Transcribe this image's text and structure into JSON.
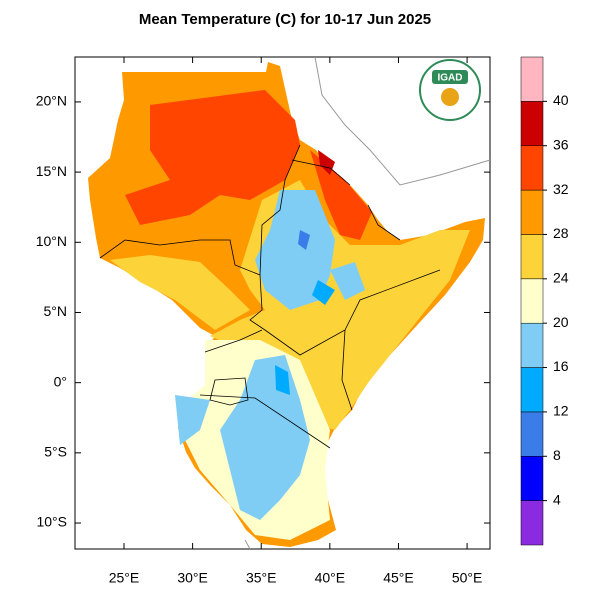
{
  "title": "Mean Temperature (C) for 10-17 Jun 2025",
  "logo": "IGAD",
  "xlim": [
    21.43,
    51.67
  ],
  "ylim": [
    -11.85,
    23.2
  ],
  "xticks": [
    {
      "value": 25,
      "label": "25°E"
    },
    {
      "value": 30,
      "label": "30°E"
    },
    {
      "value": 35,
      "label": "35°E"
    },
    {
      "value": 40,
      "label": "40°E"
    },
    {
      "value": 45,
      "label": "45°E"
    },
    {
      "value": 50,
      "label": "50°E"
    }
  ],
  "yticks": [
    {
      "value": 20,
      "label": "20°N"
    },
    {
      "value": 15,
      "label": "15°N"
    },
    {
      "value": 10,
      "label": "10°N"
    },
    {
      "value": 5,
      "label": "5°N"
    },
    {
      "value": 0,
      "label": "0°"
    },
    {
      "value": -5,
      "label": "5°S"
    },
    {
      "value": -10,
      "label": "10°S"
    }
  ],
  "colorbar": {
    "lim": [
      0,
      44
    ],
    "colors": [
      "#8a2be2",
      "#0000ff",
      "#3a7de8",
      "#00aaff",
      "#7fcdf5",
      "#ffffcc",
      "#fdd33a",
      "#ff9900",
      "#ff4500",
      "#cc0000",
      "#ffb6c1"
    ],
    "ticks": [
      4,
      8,
      12,
      16,
      20,
      24,
      28,
      32,
      36,
      40
    ]
  }
}
